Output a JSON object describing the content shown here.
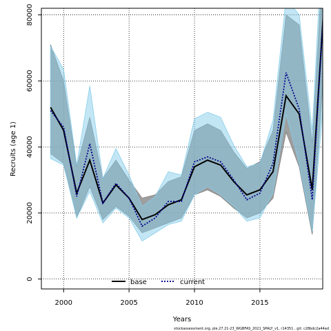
{
  "chart_data": {
    "type": "line",
    "xlabel": "Years",
    "ylabel": "Recruits (age 1)",
    "xlim": [
      1998.3,
      2019.8
    ],
    "ylim": [
      -3000,
      82000
    ],
    "xticks": [
      2000,
      2005,
      2010,
      2015
    ],
    "yticks": [
      0,
      20000,
      40000,
      60000,
      80000
    ],
    "grid": true,
    "legend_position": "bottom-center",
    "x": [
      1999,
      2000,
      2001,
      2002,
      2003,
      2004,
      2005,
      2006,
      2007,
      2008,
      2009,
      2010,
      2011,
      2012,
      2013,
      2014,
      2015,
      2016,
      2017,
      2018,
      2019,
      2020
    ],
    "series": [
      {
        "name": "base",
        "color": "#000000",
        "linestyle": "solid",
        "band_color": "#7f7f7f",
        "values": [
          52000,
          45000,
          26000,
          36000,
          23000,
          28500,
          24500,
          18000,
          19500,
          22500,
          24000,
          34000,
          36000,
          34500,
          29500,
          25500,
          27000,
          32500,
          55500,
          50000,
          27000,
          90000
        ],
        "lower": [
          38000,
          35000,
          18500,
          28000,
          18000,
          22000,
          19000,
          14000,
          15500,
          17000,
          18500,
          25500,
          27000,
          25000,
          21500,
          18500,
          20000,
          24500,
          44500,
          34000,
          13500,
          70000
        ],
        "upper": [
          71000,
          60000,
          34000,
          49000,
          30500,
          36000,
          30000,
          24500,
          25500,
          29500,
          31000,
          45000,
          47000,
          45000,
          38500,
          33500,
          35500,
          45000,
          80000,
          77000,
          41000,
          110000
        ]
      },
      {
        "name": "current",
        "color": "#00008b",
        "linestyle": "dotted",
        "band_color": "#87ceeb",
        "values": [
          51000,
          46000,
          25000,
          41000,
          23000,
          29000,
          24500,
          16000,
          18500,
          23500,
          23500,
          35500,
          37000,
          35500,
          30000,
          24000,
          26000,
          35000,
          62500,
          51500,
          24000,
          90000
        ],
        "lower": [
          36500,
          34500,
          18500,
          26500,
          17000,
          21500,
          18500,
          11500,
          14000,
          16500,
          17500,
          25500,
          28000,
          25500,
          22000,
          17500,
          18500,
          26000,
          50000,
          35000,
          14500,
          60000
        ],
        "upper": [
          70500,
          63500,
          34500,
          58500,
          30500,
          39500,
          31500,
          22000,
          25000,
          32500,
          31500,
          48500,
          50500,
          49000,
          40500,
          34000,
          35000,
          48000,
          85000,
          80000,
          45000,
          120000
        ]
      }
    ]
  },
  "footer": {
    "text": "stockassessment.org, ple.27.21-23_WGBFAS_2021_SPALY_v1, r14351 , git: c28bdc2a44ad"
  }
}
